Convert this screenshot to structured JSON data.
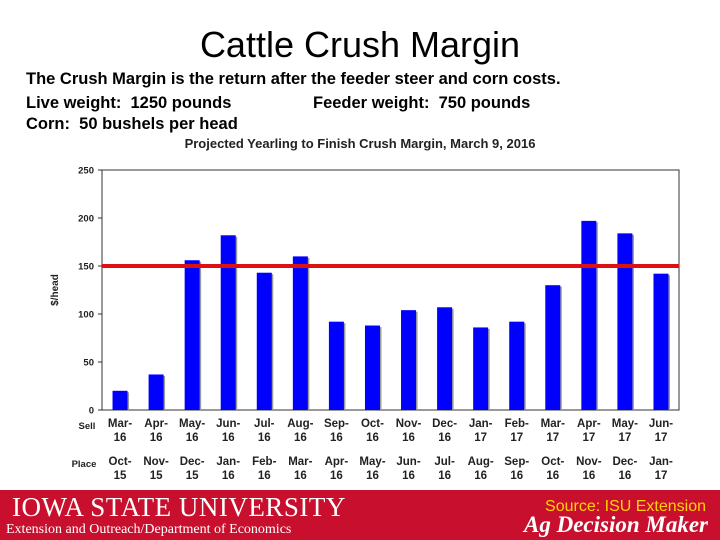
{
  "page": {
    "title": "Cattle Crush Margin",
    "line1": "The Crush Margin is the return after the feeder steer and corn costs.",
    "line2a": "Live weight:  1250 pounds",
    "line2b": "Feeder weight:  750 pounds",
    "line3": "Corn:  50 bushels per head"
  },
  "footer": {
    "university": "IOWA STATE UNIVERSITY",
    "department": "Extension and Outreach/Department of Economics",
    "source": "Source: ISU Extension",
    "brand": "Ag Decision Maker"
  },
  "colors": {
    "bar": "#0000ff",
    "reference_line": "#dd1111",
    "footer_bg": "#c8102e",
    "source_text": "#ffd200"
  },
  "chart_data": {
    "type": "bar",
    "title": "Projected Yearling to Finish Crush Margin, March 9, 2016",
    "ylabel": "$/head",
    "ylim": [
      0,
      250
    ],
    "yticks": [
      0,
      50,
      100,
      150,
      200,
      250
    ],
    "row_labels": [
      "Sell",
      "Place"
    ],
    "sell": [
      "Mar-16",
      "Apr-16",
      "May-16",
      "Jun-16",
      "Jul-16",
      "Aug-16",
      "Sep-16",
      "Oct-16",
      "Nov-16",
      "Dec-16",
      "Jan-17",
      "Feb-17",
      "Mar-17",
      "Apr-17",
      "May-17",
      "Jun-17"
    ],
    "place": [
      "Oct-15",
      "Nov-15",
      "Dec-15",
      "Jan-16",
      "Feb-16",
      "Mar-16",
      "Apr-16",
      "May-16",
      "Jun-16",
      "Jul-16",
      "Aug-16",
      "Sep-16",
      "Oct-16",
      "Nov-16",
      "Dec-16",
      "Jan-17"
    ],
    "values": [
      20,
      37,
      156,
      182,
      143,
      160,
      92,
      88,
      104,
      107,
      86,
      92,
      130,
      197,
      184,
      142
    ],
    "reference_line": 150,
    "grid": false
  }
}
